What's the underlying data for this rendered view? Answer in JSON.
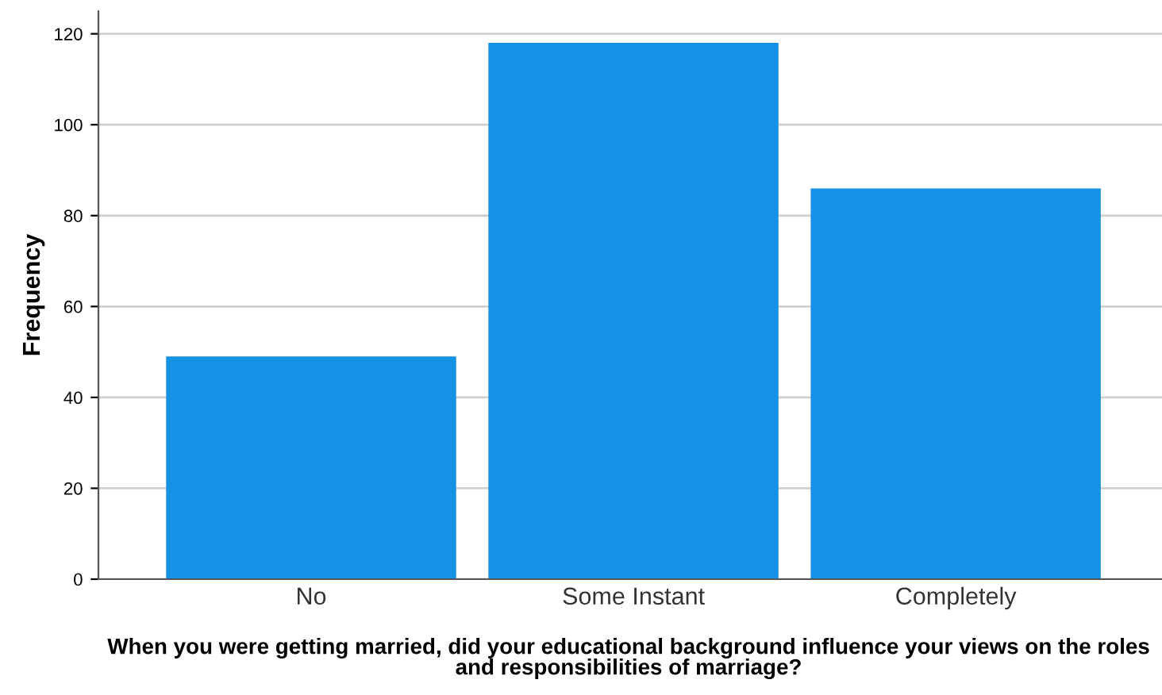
{
  "chart_data": {
    "type": "bar",
    "xlabel": "When you were getting married, did your educational background influence your views on the roles and responsibilities of marriage?",
    "ylabel": "Frequency",
    "categories": [
      "No",
      "Some Instant",
      "Completely"
    ],
    "values": [
      49,
      118,
      86
    ],
    "color": "#1591e6",
    "ylim": [
      0,
      125
    ],
    "yticks": [
      0,
      20,
      40,
      60,
      80,
      100,
      120
    ],
    "grid": "y"
  }
}
